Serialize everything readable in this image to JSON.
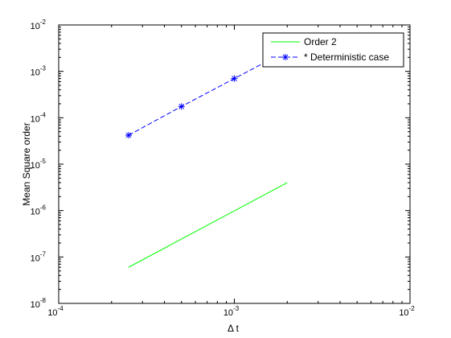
{
  "chart_data": {
    "type": "line",
    "xlabel": "Δ t",
    "ylabel": "Mean Square order",
    "x_scale": "log",
    "y_scale": "log",
    "xlim": [
      0.0001,
      0.01
    ],
    "ylim": [
      1e-08,
      0.01
    ],
    "x_ticks": [
      {
        "base": "10",
        "exp": "-4",
        "value": 0.0001
      },
      {
        "base": "10",
        "exp": "-3",
        "value": 0.001
      },
      {
        "base": "10",
        "exp": "-2",
        "value": 0.01
      }
    ],
    "y_ticks": [
      {
        "base": "10",
        "exp": "-8",
        "value": 1e-08
      },
      {
        "base": "10",
        "exp": "-7",
        "value": 1e-07
      },
      {
        "base": "10",
        "exp": "-6",
        "value": 1e-06
      },
      {
        "base": "10",
        "exp": "-5",
        "value": 1e-05
      },
      {
        "base": "10",
        "exp": "-4",
        "value": 0.0001
      },
      {
        "base": "10",
        "exp": "-3",
        "value": 0.001
      },
      {
        "base": "10",
        "exp": "-2",
        "value": 0.01
      }
    ],
    "grid": false,
    "legend_position": "top-right",
    "series": [
      {
        "name": "Order 2",
        "color": "#00ff00",
        "line_style": "solid",
        "marker": "none",
        "x": [
          0.00025,
          0.002
        ],
        "y": [
          6e-08,
          4e-06
        ]
      },
      {
        "name": "* Deterministic case",
        "color": "#0000ff",
        "line_style": "dashed",
        "marker": "asterisk",
        "x": [
          0.00025,
          0.0005,
          0.001,
          0.002
        ],
        "y": [
          4.2e-05,
          0.000175,
          0.0007,
          0.0028
        ]
      }
    ]
  }
}
